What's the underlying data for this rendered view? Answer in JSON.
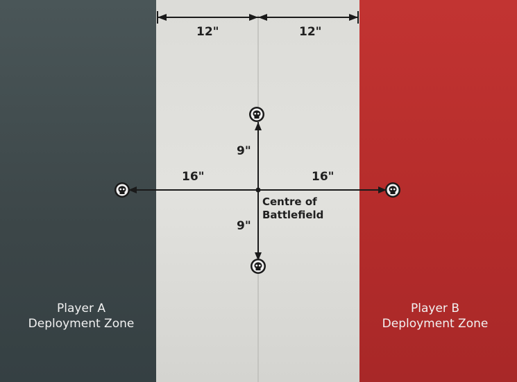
{
  "zones": {
    "player_a": {
      "line1": "Player A",
      "line2": "Deployment Zone",
      "color": "#3f4a4c"
    },
    "no_mans_land": {
      "color": "#dededa"
    },
    "player_b": {
      "line1": "Player B",
      "line2": "Deployment Zone",
      "color": "#b82e2c"
    }
  },
  "measurements": {
    "top_left": "12\"",
    "top_right": "12\"",
    "up": "9\"",
    "down": "9\"",
    "left": "16\"",
    "right": "16\""
  },
  "centre": {
    "line1": "Centre of",
    "line2": "Battlefield"
  },
  "objective_icon": "skull-icon"
}
